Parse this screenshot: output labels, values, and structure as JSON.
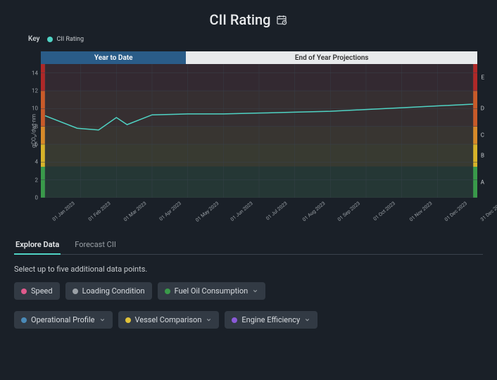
{
  "title": "CII Rating",
  "key_label": "Key",
  "legend": {
    "label": "CII Rating",
    "color": "#4fd3c4"
  },
  "chart": {
    "type": "line",
    "background_color": "#232a33",
    "line_color": "#4fd3c4",
    "line_width": 1.5,
    "ylabel": "gCO₂/dwt·nm",
    "ylim": [
      0,
      15
    ],
    "yticks": [
      0,
      2,
      4,
      6,
      8,
      10,
      12,
      14
    ],
    "grid_color": "#3a424c",
    "x_labels": [
      "01 Jan 2023",
      "01 Feb 2023",
      "01 Mar 2023",
      "01 Apr 2023",
      "01 May 2023",
      "01 Jun 2023",
      "01 Jul 2023",
      "01 Aug 2023",
      "01 Sep 2023",
      "01 Oct 2023",
      "01 Nov 2023",
      "01 Dec 2023",
      "31 Dec 2023"
    ],
    "series": {
      "x_index": [
        0,
        0.9,
        1.5,
        2.0,
        2.3,
        3.0,
        4.0,
        5.0,
        6.0,
        7.0,
        8.0,
        9.0,
        10.0,
        11.0,
        12.0
      ],
      "y": [
        9.2,
        7.8,
        7.6,
        9.0,
        8.2,
        9.3,
        9.4,
        9.4,
        9.5,
        9.6,
        9.7,
        9.9,
        10.1,
        10.3,
        10.5
      ]
    },
    "segment_tabs": {
      "active": {
        "label": "Year to Date",
        "bg": "#2a5c88",
        "text": "#ffffff"
      },
      "inactive": {
        "label": "End of Year Projections",
        "bg": "#e8eaec",
        "text": "#333333"
      }
    },
    "rating_bands": [
      {
        "label": "E",
        "from": 12.0,
        "to": 15.0,
        "color": "#b02828"
      },
      {
        "label": "D",
        "from": 8.0,
        "to": 12.0,
        "color": "#c95a2a"
      },
      {
        "label": "C",
        "from": 6.0,
        "to": 8.0,
        "color": "#d88a2a"
      },
      {
        "label": "B",
        "from": 3.5,
        "to": 6.0,
        "color": "#d8b32a"
      },
      {
        "label": "A",
        "from": 0.0,
        "to": 3.5,
        "color": "#3a9a4a"
      }
    ]
  },
  "data_tabs": [
    "Explore Data",
    "Forecast CII"
  ],
  "data_tab_active": 0,
  "instruction": "Select up to five additional data points.",
  "chips": [
    {
      "label": "Speed",
      "color": "#e05a8c",
      "dropdown": false
    },
    {
      "label": "Loading Condition",
      "color": "#9aa0a6",
      "dropdown": false
    },
    {
      "label": "Fuel Oil Consumption",
      "color": "#3a9a4a",
      "dropdown": true
    },
    {
      "label": "Operational Profile",
      "color": "#4a8ab8",
      "dropdown": true
    },
    {
      "label": "Vessel Comparison",
      "color": "#e0c23a",
      "dropdown": true
    },
    {
      "label": "Engine Efficiency",
      "color": "#8a5ad8",
      "dropdown": true
    }
  ]
}
